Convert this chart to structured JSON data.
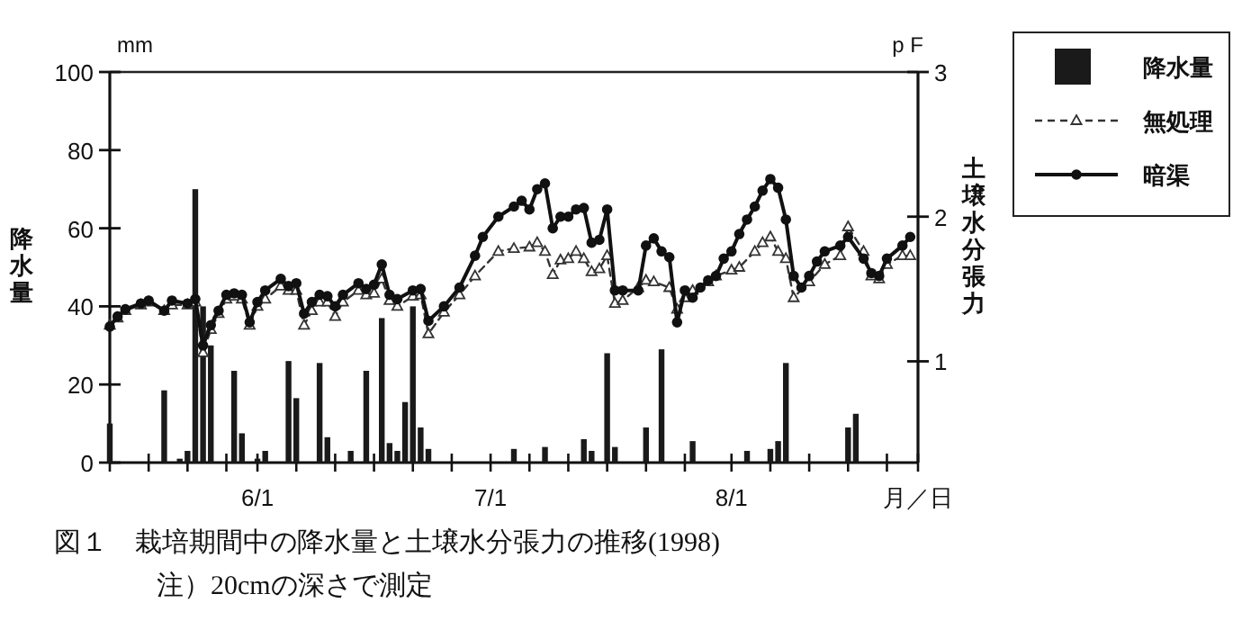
{
  "chart_data": {
    "type": "bar",
    "title": "図１　栽培期間中の降水量と土壌水分張力の推移(1998)",
    "annotations": [
      "mm",
      "p F",
      "注）20cmの深さで測定"
    ],
    "xlabel": "月／日",
    "ylabel": "降水量",
    "y2label": "土壌水分張力",
    "xlim": [
      "1998-05-13",
      "1998-08-25"
    ],
    "xticks": [
      {
        "value": "1998-05-13",
        "label": null
      },
      {
        "value": "1998-05-18",
        "label": null
      },
      {
        "value": "1998-05-23",
        "label": null
      },
      {
        "value": "1998-05-28",
        "label": null
      },
      {
        "value": "1998-06-01",
        "label": "6/1"
      },
      {
        "value": "1998-06-06",
        "label": null
      },
      {
        "value": "1998-06-11",
        "label": null
      },
      {
        "value": "1998-06-16",
        "label": null
      },
      {
        "value": "1998-06-21",
        "label": null
      },
      {
        "value": "1998-06-26",
        "label": null
      },
      {
        "value": "1998-07-01",
        "label": "7/1"
      },
      {
        "value": "1998-07-06",
        "label": null
      },
      {
        "value": "1998-07-11",
        "label": null
      },
      {
        "value": "1998-07-16",
        "label": null
      },
      {
        "value": "1998-07-21",
        "label": null
      },
      {
        "value": "1998-07-26",
        "label": null
      },
      {
        "value": "1998-08-01",
        "label": "8/1"
      },
      {
        "value": "1998-08-06",
        "label": null
      },
      {
        "value": "1998-08-11",
        "label": null
      },
      {
        "value": "1998-08-16",
        "label": null
      },
      {
        "value": "1998-08-21",
        "label": null
      },
      {
        "value": "1998-08-25",
        "label": null
      }
    ],
    "ylim": [
      0,
      100
    ],
    "yticks": [
      0,
      20,
      40,
      60,
      80,
      100
    ],
    "y2lim": [
      0.3,
      3
    ],
    "y2ticks": [
      1,
      2,
      3
    ],
    "legend": "top right",
    "series": [
      {
        "name": "降水量",
        "color": "#1a1a1a",
        "x": [
          "1998-05-13",
          "1998-05-20",
          "1998-05-22",
          "1998-05-23",
          "1998-05-24",
          "1998-05-25",
          "1998-05-26",
          "1998-05-29",
          "1998-05-30",
          "1998-06-01",
          "1998-06-02",
          "1998-06-05",
          "1998-06-06",
          "1998-06-09",
          "1998-06-10",
          "1998-06-13",
          "1998-06-15",
          "1998-06-17",
          "1998-06-18",
          "1998-06-19",
          "1998-06-20",
          "1998-06-21",
          "1998-06-22",
          "1998-06-23",
          "1998-07-04",
          "1998-07-08",
          "1998-07-13",
          "1998-07-14",
          "1998-07-16",
          "1998-07-17",
          "1998-07-21",
          "1998-07-23",
          "1998-07-27",
          "1998-08-03",
          "1998-08-06",
          "1998-08-07",
          "1998-08-08",
          "1998-08-16",
          "1998-08-17"
        ],
        "values": [
          10,
          18.5,
          1,
          3,
          70,
          40,
          30,
          23.5,
          7.5,
          1,
          3,
          26,
          16.5,
          25.5,
          6.5,
          3,
          23.5,
          37,
          5,
          3,
          15.5,
          40,
          9,
          3.5,
          3.5,
          4,
          6,
          3,
          28,
          4,
          9,
          29,
          5.5,
          3,
          3.5,
          5.5,
          25.5,
          9,
          12.5
        ]
      },
      {
        "name": "無処理",
        "type": "line",
        "axis": "y2",
        "color": "#333333",
        "marker": "triangle",
        "line_style": "dashed",
        "x": [
          "1998-05-13",
          "1998-05-14",
          "1998-05-15",
          "1998-05-17",
          "1998-05-18",
          "1998-05-20",
          "1998-05-21",
          "1998-05-23",
          "1998-05-24",
          "1998-05-25",
          "1998-05-26",
          "1998-05-27",
          "1998-05-28",
          "1998-05-29",
          "1998-05-30",
          "1998-05-31",
          "1998-06-01",
          "1998-06-02",
          "1998-06-04",
          "1998-06-05",
          "1998-06-06",
          "1998-06-07",
          "1998-06-08",
          "1998-06-09",
          "1998-06-10",
          "1998-06-11",
          "1998-06-12",
          "1998-06-14",
          "1998-06-15",
          "1998-06-16",
          "1998-06-17",
          "1998-06-18",
          "1998-06-19",
          "1998-06-21",
          "1998-06-22",
          "1998-06-23",
          "1998-06-25",
          "1998-06-27",
          "1998-06-29",
          "1998-07-02",
          "1998-07-04",
          "1998-07-06",
          "1998-07-07",
          "1998-07-08",
          "1998-07-09",
          "1998-07-10",
          "1998-07-11",
          "1998-07-12",
          "1998-07-13",
          "1998-07-14",
          "1998-07-15",
          "1998-07-16",
          "1998-07-17",
          "1998-07-18",
          "1998-07-20",
          "1998-07-21",
          "1998-07-22",
          "1998-07-24",
          "1998-07-25",
          "1998-07-26",
          "1998-07-27",
          "1998-07-29",
          "1998-07-30",
          "1998-08-01",
          "1998-08-02",
          "1998-08-04",
          "1998-08-05",
          "1998-08-06",
          "1998-08-07",
          "1998-08-08",
          "1998-08-09",
          "1998-08-11",
          "1998-08-13",
          "1998-08-15",
          "1998-08-16",
          "1998-08-18",
          "1998-08-19",
          "1998-08-20",
          "1998-08-21",
          "1998-08-23",
          "1998-08-24"
        ],
        "values": [
          1.25,
          1.3,
          1.35,
          1.39,
          1.41,
          1.35,
          1.39,
          1.39,
          1.41,
          1.06,
          1.22,
          1.33,
          1.43,
          1.45,
          1.43,
          1.25,
          1.38,
          1.43,
          1.52,
          1.49,
          1.49,
          1.25,
          1.35,
          1.41,
          1.41,
          1.31,
          1.41,
          1.49,
          1.46,
          1.47,
          1.57,
          1.42,
          1.38,
          1.45,
          1.46,
          1.19,
          1.34,
          1.46,
          1.59,
          1.76,
          1.78,
          1.79,
          1.82,
          1.76,
          1.6,
          1.7,
          1.71,
          1.76,
          1.71,
          1.62,
          1.64,
          1.73,
          1.4,
          1.42,
          1.51,
          1.56,
          1.55,
          1.51,
          1.36,
          1.44,
          1.49,
          1.55,
          1.59,
          1.63,
          1.65,
          1.76,
          1.82,
          1.86,
          1.76,
          1.71,
          1.44,
          1.55,
          1.67,
          1.73,
          1.93,
          1.76,
          1.59,
          1.57,
          1.67,
          1.73,
          1.73
        ]
      },
      {
        "name": "暗渠",
        "type": "line",
        "axis": "y2",
        "color": "#111111",
        "marker": "circle",
        "line_style": "solid",
        "x": [
          "1998-05-13",
          "1998-05-14",
          "1998-05-15",
          "1998-05-17",
          "1998-05-18",
          "1998-05-20",
          "1998-05-21",
          "1998-05-23",
          "1998-05-24",
          "1998-05-25",
          "1998-05-26",
          "1998-05-27",
          "1998-05-28",
          "1998-05-29",
          "1998-05-30",
          "1998-05-31",
          "1998-06-01",
          "1998-06-02",
          "1998-06-04",
          "1998-06-05",
          "1998-06-06",
          "1998-06-07",
          "1998-06-08",
          "1998-06-09",
          "1998-06-10",
          "1998-06-11",
          "1998-06-12",
          "1998-06-14",
          "1998-06-15",
          "1998-06-16",
          "1998-06-17",
          "1998-06-18",
          "1998-06-19",
          "1998-06-21",
          "1998-06-22",
          "1998-06-23",
          "1998-06-25",
          "1998-06-27",
          "1998-06-29",
          "1998-06-30",
          "1998-07-02",
          "1998-07-04",
          "1998-07-05",
          "1998-07-06",
          "1998-07-07",
          "1998-07-08",
          "1998-07-09",
          "1998-07-10",
          "1998-07-11",
          "1998-07-12",
          "1998-07-13",
          "1998-07-14",
          "1998-07-15",
          "1998-07-16",
          "1998-07-17",
          "1998-07-18",
          "1998-07-20",
          "1998-07-21",
          "1998-07-22",
          "1998-07-23",
          "1998-07-24",
          "1998-07-25",
          "1998-07-26",
          "1998-07-27",
          "1998-07-28",
          "1998-07-29",
          "1998-07-30",
          "1998-07-31",
          "1998-08-01",
          "1998-08-02",
          "1998-08-03",
          "1998-08-04",
          "1998-08-05",
          "1998-08-06",
          "1998-08-07",
          "1998-08-08",
          "1998-08-09",
          "1998-08-10",
          "1998-08-11",
          "1998-08-12",
          "1998-08-13",
          "1998-08-15",
          "1998-08-16",
          "1998-08-18",
          "1998-08-19",
          "1998-08-20",
          "1998-08-21",
          "1998-08-23",
          "1998-08-24"
        ],
        "values": [
          1.24,
          1.31,
          1.36,
          1.4,
          1.42,
          1.35,
          1.42,
          1.4,
          1.43,
          1.11,
          1.25,
          1.35,
          1.46,
          1.47,
          1.46,
          1.27,
          1.41,
          1.49,
          1.57,
          1.52,
          1.54,
          1.33,
          1.41,
          1.46,
          1.45,
          1.38,
          1.46,
          1.54,
          1.5,
          1.53,
          1.67,
          1.46,
          1.43,
          1.49,
          1.5,
          1.28,
          1.38,
          1.51,
          1.73,
          1.86,
          2.0,
          2.07,
          2.11,
          2.05,
          2.19,
          2.23,
          1.92,
          2.0,
          2.0,
          2.05,
          2.06,
          1.82,
          1.84,
          2.05,
          1.49,
          1.49,
          1.49,
          1.8,
          1.85,
          1.76,
          1.72,
          1.27,
          1.49,
          1.44,
          1.51,
          1.56,
          1.59,
          1.71,
          1.76,
          1.88,
          1.98,
          2.07,
          2.18,
          2.26,
          2.2,
          1.98,
          1.59,
          1.51,
          1.59,
          1.69,
          1.76,
          1.8,
          1.86,
          1.71,
          1.61,
          1.59,
          1.71,
          1.8,
          1.86
        ]
      }
    ]
  }
}
